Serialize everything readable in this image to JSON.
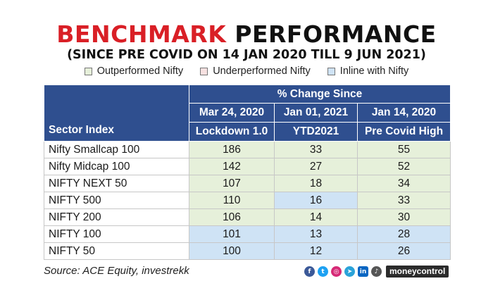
{
  "title": {
    "word1": "BENCHMARK",
    "word2": "PERFORMANCE",
    "subtitle": "(SINCE PRE COVID ON 14 JAN 2020 TILL 9 JUN 2021)"
  },
  "legend": [
    {
      "label": "Outperformed Nifty",
      "color": "#e6f0da"
    },
    {
      "label": "Underperformed Nifty",
      "color": "#f7e1e1"
    },
    {
      "label": "Inline with Nifty",
      "color": "#cfe3f5"
    }
  ],
  "colors": {
    "header_bg": "#2f4f8f",
    "outperformed": "#e6f0da",
    "underperformed": "#f7e1e1",
    "inline": "#cfe3f5",
    "title_red": "#d91f26"
  },
  "chart_data": {
    "type": "table",
    "group_header": "% Change Since",
    "row_header": "Sector Index",
    "columns": [
      {
        "date": "Mar 24, 2020",
        "label": "Lockdown 1.0"
      },
      {
        "date": "Jan 01, 2021",
        "label": "YTD2021"
      },
      {
        "date": "Jan 14, 2020",
        "label": "Pre Covid High"
      }
    ],
    "rows": [
      {
        "sector": "Nifty Smallcap 100",
        "values": [
          186,
          33,
          55
        ],
        "status": [
          "outperformed",
          "outperformed",
          "outperformed"
        ]
      },
      {
        "sector": "Nifty Midcap 100",
        "values": [
          142,
          27,
          52
        ],
        "status": [
          "outperformed",
          "outperformed",
          "outperformed"
        ]
      },
      {
        "sector": "NIFTY NEXT 50",
        "values": [
          107,
          18,
          34
        ],
        "status": [
          "outperformed",
          "outperformed",
          "outperformed"
        ]
      },
      {
        "sector": "NIFTY 500",
        "values": [
          110,
          16,
          33
        ],
        "status": [
          "outperformed",
          "inline",
          "outperformed"
        ]
      },
      {
        "sector": "NIFTY 200",
        "values": [
          106,
          14,
          30
        ],
        "status": [
          "outperformed",
          "outperformed",
          "outperformed"
        ]
      },
      {
        "sector": "NIFTY 100",
        "values": [
          101,
          13,
          28
        ],
        "status": [
          "inline",
          "inline",
          "inline"
        ]
      },
      {
        "sector": "NIFTY 50",
        "values": [
          100,
          12,
          26
        ],
        "status": [
          "inline",
          "inline",
          "inline"
        ]
      }
    ]
  },
  "footer": {
    "source": "Source: ACE Equity, investrekk",
    "brand": "moneycontrol",
    "social_icons": [
      "facebook-icon",
      "twitter-icon",
      "instagram-icon",
      "telegram-icon",
      "linkedin-icon",
      "bell-icon"
    ]
  }
}
